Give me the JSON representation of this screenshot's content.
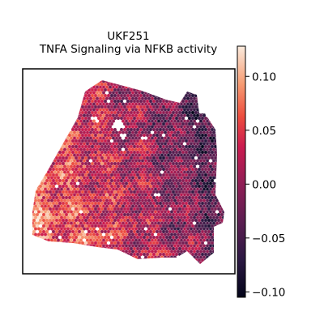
{
  "chart_data": {
    "type": "heatmap",
    "title_line1": "UKF251",
    "title_line2": "TNFA Signaling via NFKB activity",
    "colormap": "rocket",
    "colorbar": {
      "vmin": -0.105,
      "vmax": 0.128,
      "ticks": [
        0.1,
        0.05,
        0.0,
        -0.05,
        -0.1
      ],
      "tick_labels": [
        "0.10",
        "0.05",
        "0.00",
        "−0.05",
        "−0.10"
      ]
    },
    "spots_summary": {
      "pattern": "dense hexagonal spot grid forming an irregular tissue section; higher activity (orange/salmon) on the left and lower-left, lower activity (dark purple) on the right side",
      "value_range": [
        -0.1,
        0.12
      ]
    }
  }
}
